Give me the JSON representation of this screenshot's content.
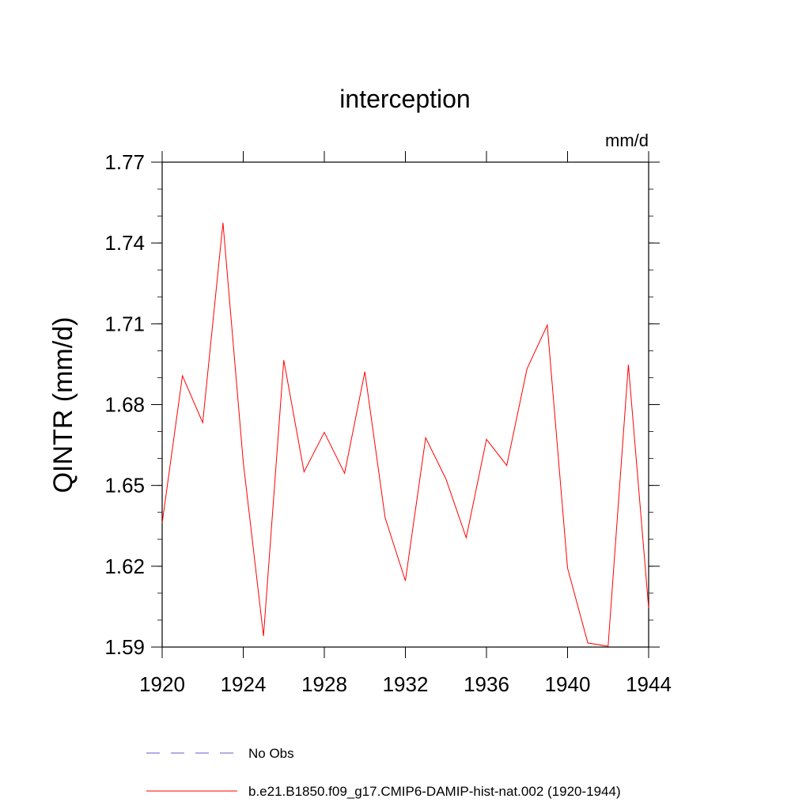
{
  "chart_data": {
    "type": "line",
    "title": "interception",
    "units": "mm/d",
    "ylabel": "QINTR  (mm/d)",
    "xlabel": "",
    "xlim": [
      1920,
      1944
    ],
    "ylim": [
      1.59,
      1.77
    ],
    "x_ticks": [
      1920,
      1924,
      1928,
      1932,
      1936,
      1940,
      1944
    ],
    "x_tick_labels": [
      "1920",
      "1924",
      "1928",
      "1932",
      "1936",
      "1940",
      "1944"
    ],
    "y_ticks": [
      1.59,
      1.62,
      1.65,
      1.68,
      1.71,
      1.74,
      1.77
    ],
    "y_tick_labels": [
      "1.59",
      "1.62",
      "1.65",
      "1.68",
      "1.71",
      "1.74",
      "1.77"
    ],
    "y_minor_step": 0.01,
    "grid": false,
    "legend_position": "bottom",
    "legend": [
      {
        "label": "No Obs",
        "color": "#6a5acd",
        "dash": true
      },
      {
        "label": "b.e21.B1850.f09_g17.CMIP6-DAMIP-hist-nat.002 (1920-1944)",
        "color": "#ff0000",
        "dash": false
      }
    ],
    "series": [
      {
        "name": "b.e21.B1850.f09_g17.CMIP6-DAMIP-hist-nat.002 (1920-1944)",
        "color": "#ff0000",
        "x": [
          1920,
          1921,
          1922,
          1923,
          1924,
          1925,
          1926,
          1927,
          1928,
          1929,
          1930,
          1931,
          1932,
          1933,
          1934,
          1935,
          1936,
          1937,
          1938,
          1939,
          1940,
          1941,
          1942,
          1943,
          1944
        ],
        "y": [
          1.636,
          1.6907,
          1.6733,
          1.7475,
          1.6587,
          1.5941,
          1.6965,
          1.655,
          1.6697,
          1.6545,
          1.6922,
          1.638,
          1.6146,
          1.6677,
          1.6524,
          1.6306,
          1.6671,
          1.6574,
          1.6933,
          1.7095,
          1.6193,
          1.5915,
          1.5903,
          1.6948,
          1.6045
        ]
      }
    ]
  }
}
